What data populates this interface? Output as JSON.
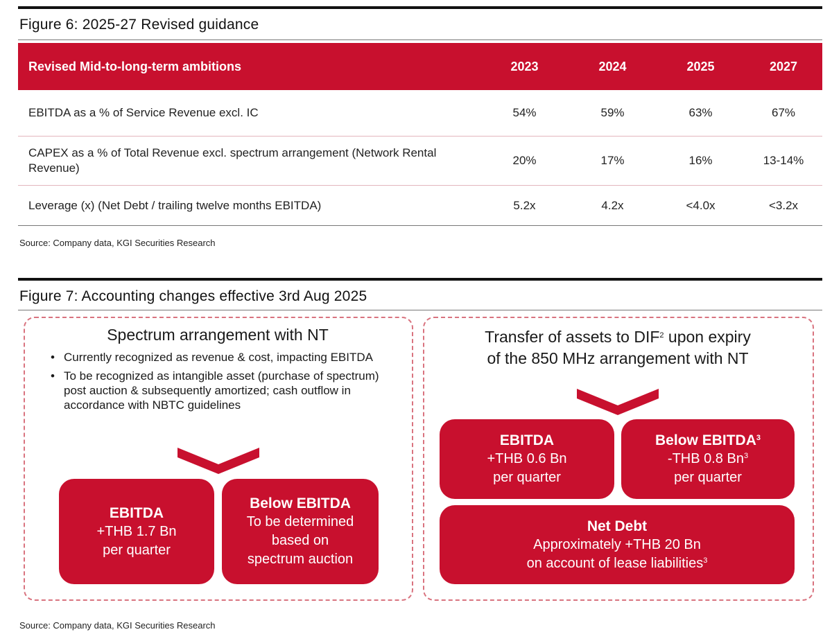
{
  "figure6": {
    "title": "Figure 6: 2025-27 Revised guidance",
    "table": {
      "headers": [
        "Revised Mid-to-long-term ambitions",
        "2023",
        "2024",
        "2025",
        "2027"
      ],
      "rows": [
        {
          "label": "EBITDA as a % of Service Revenue excl. IC",
          "values": [
            "54%",
            "59%",
            "63%",
            "67%"
          ]
        },
        {
          "label": "CAPEX as a % of Total Revenue excl. spectrum arrangement (Network Rental Revenue)",
          "values": [
            "20%",
            "17%",
            "16%",
            "13-14%"
          ]
        },
        {
          "label": "Leverage (x) (Net Debt / trailing twelve months EBITDA)",
          "values": [
            "5.2x",
            "4.2x",
            "<4.0x",
            "<3.2x"
          ]
        }
      ]
    },
    "source": "Source: Company data, KGI Securities Research"
  },
  "figure7": {
    "title": "Figure 7: Accounting changes effective 3rd Aug 2025",
    "left": {
      "title": "Spectrum arrangement with NT",
      "bullets": [
        "Currently recognized as revenue & cost, impacting EBITDA",
        "To be recognized as intangible asset (purchase of spectrum) post auction & subsequently amortized; cash outflow in accordance with NBTC guidelines"
      ],
      "box1": {
        "heading": "EBITDA",
        "line1": "+THB 1.7 Bn",
        "line2": "per quarter"
      },
      "box2": {
        "heading": "Below EBITDA",
        "line1": "To be determined",
        "line2": "based on",
        "line3": "spectrum auction"
      }
    },
    "right": {
      "title_line1_pre": "Transfer of assets to DIF",
      "title_sup": "2",
      "title_line1_post": " upon expiry",
      "title_line2": "of the 850 MHz arrangement with NT",
      "box1": {
        "heading": "EBITDA",
        "line1": "+THB 0.6 Bn",
        "line2": "per quarter"
      },
      "box2": {
        "heading": "Below EBITDA",
        "heading_sup": "3",
        "line1": "-THB 0.8 Bn",
        "line1_sup": "3",
        "line2": "per quarter"
      },
      "box3": {
        "heading": "Net Debt",
        "line1": "Approximately +THB 20 Bn",
        "line2": "on account of lease liabilities",
        "line2_sup": "3"
      }
    },
    "source": "Source: Company data, KGI Securities Research"
  },
  "colors": {
    "accent_red": "#c8102e",
    "dashed_border": "#d9737f"
  }
}
